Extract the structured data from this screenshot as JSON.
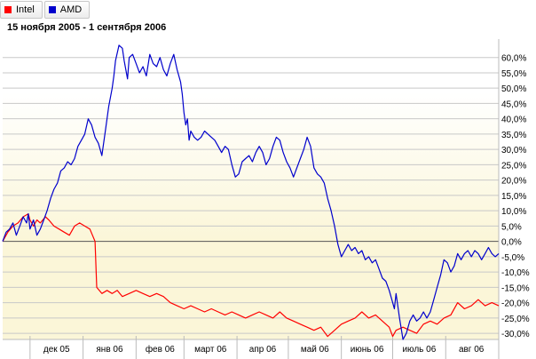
{
  "legend": [
    {
      "label": "Intel",
      "color": "#ff0000"
    },
    {
      "label": "AMD",
      "color": "#0000cc"
    }
  ],
  "chart_data": {
    "type": "line",
    "title": "",
    "subtitle": "15 ноября 2005 - 1 сентября 2006",
    "y_ticks": [
      "60,0%",
      "55,0%",
      "50,0%",
      "45,0%",
      "40,0%",
      "35,0%",
      "30,0%",
      "25,0%",
      "20,0%",
      "15,0%",
      "10,0%",
      "5,0%",
      "0,0%",
      "-5,0%",
      "-10,0%",
      "-15,0%",
      "-20,0%",
      "-25,0%",
      "-30,0%"
    ],
    "y_tick_values": [
      60,
      55,
      50,
      45,
      40,
      35,
      30,
      25,
      20,
      15,
      10,
      5,
      0,
      -5,
      -10,
      -15,
      -20,
      -25,
      -30
    ],
    "ylim": [
      -32,
      66
    ],
    "x_ticks": [
      "дек 05",
      "янв 06",
      "фев 06",
      "март 06",
      "апр 06",
      "май 06",
      "июнь 06",
      "июль 06",
      "авг 06"
    ],
    "x_tick_days": [
      16,
      47,
      78,
      106,
      137,
      167,
      198,
      228,
      259
    ],
    "xlim": [
      0,
      290
    ],
    "grid": true,
    "series": [
      {
        "name": "Intel",
        "color": "#ff0000",
        "points": [
          [
            0,
            0
          ],
          [
            3,
            3
          ],
          [
            6,
            5
          ],
          [
            9,
            6
          ],
          [
            12,
            8
          ],
          [
            15,
            9
          ],
          [
            16,
            7
          ],
          [
            18,
            5
          ],
          [
            20,
            7
          ],
          [
            22,
            6
          ],
          [
            25,
            8
          ],
          [
            27,
            7
          ],
          [
            30,
            5
          ],
          [
            33,
            4
          ],
          [
            36,
            3
          ],
          [
            39,
            2
          ],
          [
            42,
            5
          ],
          [
            45,
            6
          ],
          [
            48,
            5
          ],
          [
            51,
            4
          ],
          [
            54,
            0
          ],
          [
            55,
            -15
          ],
          [
            58,
            -17
          ],
          [
            61,
            -16
          ],
          [
            64,
            -17
          ],
          [
            67,
            -16
          ],
          [
            70,
            -18
          ],
          [
            74,
            -17
          ],
          [
            78,
            -16
          ],
          [
            82,
            -17
          ],
          [
            86,
            -18
          ],
          [
            90,
            -17
          ],
          [
            94,
            -18
          ],
          [
            98,
            -20
          ],
          [
            102,
            -21
          ],
          [
            106,
            -22
          ],
          [
            110,
            -21
          ],
          [
            114,
            -22
          ],
          [
            118,
            -23
          ],
          [
            122,
            -22
          ],
          [
            126,
            -23
          ],
          [
            130,
            -24
          ],
          [
            134,
            -23
          ],
          [
            138,
            -24
          ],
          [
            142,
            -25
          ],
          [
            146,
            -24
          ],
          [
            150,
            -23
          ],
          [
            154,
            -24
          ],
          [
            158,
            -25
          ],
          [
            162,
            -23
          ],
          [
            166,
            -25
          ],
          [
            170,
            -26
          ],
          [
            174,
            -27
          ],
          [
            178,
            -28
          ],
          [
            182,
            -29
          ],
          [
            186,
            -28
          ],
          [
            190,
            -31
          ],
          [
            194,
            -29
          ],
          [
            198,
            -27
          ],
          [
            202,
            -26
          ],
          [
            206,
            -25
          ],
          [
            210,
            -23
          ],
          [
            214,
            -25
          ],
          [
            218,
            -24
          ],
          [
            222,
            -26
          ],
          [
            226,
            -28
          ],
          [
            228,
            -31
          ],
          [
            230,
            -29
          ],
          [
            234,
            -28
          ],
          [
            238,
            -29
          ],
          [
            242,
            -30
          ],
          [
            246,
            -27
          ],
          [
            250,
            -26
          ],
          [
            254,
            -27
          ],
          [
            258,
            -25
          ],
          [
            262,
            -24
          ],
          [
            266,
            -20
          ],
          [
            270,
            -22
          ],
          [
            274,
            -21
          ],
          [
            278,
            -19
          ],
          [
            282,
            -21
          ],
          [
            286,
            -20
          ],
          [
            290,
            -21
          ]
        ]
      },
      {
        "name": "AMD",
        "color": "#0000cc",
        "points": [
          [
            0,
            0
          ],
          [
            2,
            3
          ],
          [
            4,
            4
          ],
          [
            6,
            6
          ],
          [
            8,
            2
          ],
          [
            10,
            5
          ],
          [
            12,
            8
          ],
          [
            14,
            6
          ],
          [
            15,
            9
          ],
          [
            16,
            4
          ],
          [
            18,
            7
          ],
          [
            20,
            2
          ],
          [
            22,
            4
          ],
          [
            24,
            7
          ],
          [
            26,
            10
          ],
          [
            28,
            14
          ],
          [
            30,
            17
          ],
          [
            32,
            19
          ],
          [
            34,
            23
          ],
          [
            36,
            24
          ],
          [
            38,
            26
          ],
          [
            40,
            25
          ],
          [
            42,
            27
          ],
          [
            44,
            31
          ],
          [
            46,
            33
          ],
          [
            48,
            35
          ],
          [
            50,
            40
          ],
          [
            52,
            38
          ],
          [
            54,
            34
          ],
          [
            56,
            32
          ],
          [
            58,
            28
          ],
          [
            60,
            36
          ],
          [
            62,
            44
          ],
          [
            64,
            50
          ],
          [
            65,
            54
          ],
          [
            66,
            59
          ],
          [
            68,
            64
          ],
          [
            70,
            63
          ],
          [
            71,
            59
          ],
          [
            72,
            56
          ],
          [
            73,
            53
          ],
          [
            74,
            60
          ],
          [
            76,
            61
          ],
          [
            78,
            58
          ],
          [
            80,
            55
          ],
          [
            82,
            57
          ],
          [
            84,
            54
          ],
          [
            86,
            61
          ],
          [
            88,
            58
          ],
          [
            90,
            57
          ],
          [
            92,
            60
          ],
          [
            94,
            56
          ],
          [
            96,
            54
          ],
          [
            98,
            58
          ],
          [
            100,
            61
          ],
          [
            102,
            56
          ],
          [
            104,
            52
          ],
          [
            105,
            48
          ],
          [
            106,
            42
          ],
          [
            107,
            38
          ],
          [
            108,
            40
          ],
          [
            109,
            33
          ],
          [
            110,
            36
          ],
          [
            112,
            34
          ],
          [
            114,
            33
          ],
          [
            116,
            34
          ],
          [
            118,
            36
          ],
          [
            120,
            35
          ],
          [
            122,
            34
          ],
          [
            124,
            33
          ],
          [
            126,
            31
          ],
          [
            128,
            29
          ],
          [
            130,
            31
          ],
          [
            132,
            30
          ],
          [
            134,
            25
          ],
          [
            136,
            21
          ],
          [
            138,
            22
          ],
          [
            140,
            26
          ],
          [
            142,
            27
          ],
          [
            144,
            28
          ],
          [
            146,
            26
          ],
          [
            148,
            29
          ],
          [
            150,
            31
          ],
          [
            152,
            29
          ],
          [
            154,
            25
          ],
          [
            156,
            27
          ],
          [
            158,
            31
          ],
          [
            160,
            34
          ],
          [
            162,
            33
          ],
          [
            164,
            29
          ],
          [
            166,
            26
          ],
          [
            168,
            24
          ],
          [
            170,
            21
          ],
          [
            172,
            24
          ],
          [
            174,
            27
          ],
          [
            176,
            30
          ],
          [
            178,
            34
          ],
          [
            180,
            31
          ],
          [
            182,
            24
          ],
          [
            184,
            22
          ],
          [
            186,
            21
          ],
          [
            188,
            19
          ],
          [
            190,
            14
          ],
          [
            192,
            10
          ],
          [
            194,
            5
          ],
          [
            196,
            -1
          ],
          [
            198,
            -5
          ],
          [
            200,
            -3
          ],
          [
            202,
            -1
          ],
          [
            204,
            -3
          ],
          [
            206,
            -2
          ],
          [
            208,
            -4
          ],
          [
            210,
            -3
          ],
          [
            212,
            -6
          ],
          [
            214,
            -5
          ],
          [
            216,
            -7
          ],
          [
            218,
            -6
          ],
          [
            220,
            -9
          ],
          [
            222,
            -12
          ],
          [
            224,
            -13
          ],
          [
            226,
            -16
          ],
          [
            228,
            -20
          ],
          [
            229,
            -22
          ],
          [
            230,
            -17
          ],
          [
            232,
            -25
          ],
          [
            234,
            -32
          ],
          [
            236,
            -30
          ],
          [
            238,
            -26
          ],
          [
            240,
            -24
          ],
          [
            242,
            -26
          ],
          [
            244,
            -25
          ],
          [
            246,
            -23
          ],
          [
            248,
            -25
          ],
          [
            250,
            -23
          ],
          [
            252,
            -19
          ],
          [
            254,
            -15
          ],
          [
            256,
            -11
          ],
          [
            258,
            -6
          ],
          [
            260,
            -7
          ],
          [
            262,
            -10
          ],
          [
            264,
            -8
          ],
          [
            266,
            -4
          ],
          [
            268,
            -6
          ],
          [
            270,
            -4
          ],
          [
            272,
            -3
          ],
          [
            274,
            -5
          ],
          [
            276,
            -3
          ],
          [
            278,
            -4
          ],
          [
            280,
            -6
          ],
          [
            282,
            -4
          ],
          [
            284,
            -2
          ],
          [
            286,
            -4
          ],
          [
            288,
            -5
          ],
          [
            290,
            -4
          ]
        ]
      }
    ]
  }
}
